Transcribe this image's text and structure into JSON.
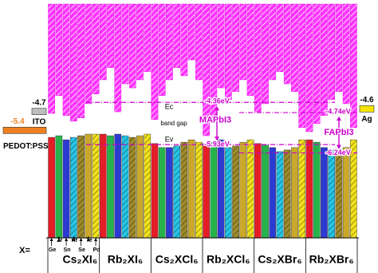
{
  "chart_data": {
    "type": "band-alignment",
    "ylim": [
      -9.4,
      -0.7
    ],
    "cb_color": "#ff33ff",
    "categories": [
      "Cs₂XI₆",
      "Rb₂XI₆",
      "Cs₂XCl₆",
      "Rb₂XCl₆",
      "Cs₂XBr₆",
      "Rb₂XBr₆"
    ],
    "x_label": "X=",
    "series": [
      {
        "name": "Ge",
        "color": "#e41e26",
        "hatch": false,
        "cbm": [
          -4.77,
          -3.52,
          -5.0,
          -5.6,
          -4.71,
          -5.45
        ],
        "vbm": [
          -5.66,
          -5.54,
          -5.89,
          -5.89,
          -5.89,
          -5.75
        ]
      },
      {
        "name": "Zr",
        "color": "#27b34b",
        "hatch": false,
        "cbm": [
          -4.11,
          -3.07,
          -4.11,
          -5.0,
          -4.41,
          -5.15
        ],
        "vbm": [
          -5.6,
          -5.6,
          -6.04,
          -5.84,
          -5.95,
          -5.84
        ]
      },
      {
        "name": "Sn",
        "color": "#2b3bd1",
        "hatch": false,
        "cbm": [
          -4.85,
          -4.71,
          -3.52,
          -3.82,
          -3.52,
          -4.85
        ],
        "vbm": [
          -5.75,
          -5.54,
          -6.04,
          -5.75,
          -6.04,
          -6.04
        ]
      },
      {
        "name": "Hf",
        "color": "#27c6e6",
        "hatch": true,
        "cbm": [
          -5.06,
          -3.67,
          -3.07,
          -4.26,
          -3.22,
          -4.26
        ],
        "vbm": [
          -5.66,
          -5.6,
          -5.98,
          -6.04,
          -6.19,
          -6.13
        ]
      },
      {
        "name": "Se",
        "color": "#9e8b2a",
        "hatch": true,
        "cbm": [
          -4.94,
          -3.82,
          -3.37,
          -3.96,
          -3.67,
          -3.96
        ],
        "vbm": [
          -5.6,
          -5.66,
          -5.84,
          -5.98,
          -6.13,
          -6.19
        ]
      },
      {
        "name": "Te",
        "color": "#c9a82b",
        "hatch": false,
        "cbm": [
          -4.41,
          -3.52,
          -2.78,
          -3.52,
          -3.96,
          -4.41
        ],
        "vbm": [
          -5.54,
          -5.6,
          -5.75,
          -5.84,
          -6.04,
          -6.04
        ]
      },
      {
        "name": "Pd",
        "color": "#f2e21b",
        "hatch": true,
        "cbm": [
          -4.05,
          -3.22,
          -3.52,
          -4.11,
          -5.3,
          -5.3
        ],
        "vbm": [
          -5.54,
          -5.54,
          -5.84,
          -5.75,
          -5.75,
          -5.75
        ]
      }
    ],
    "references": [
      {
        "name": "MAPbI3",
        "color": "#cc00cc",
        "values": [
          -4.36,
          -5.93
        ],
        "value_labels": [
          "-4.36eV",
          "-5.93eV"
        ]
      },
      {
        "name": "FAPbI3",
        "color": "#cc00cc",
        "values": [
          -4.74,
          -6.24
        ],
        "value_labels": [
          "-4.74eV",
          "-6.24eV"
        ]
      }
    ],
    "electrodes": [
      {
        "name": "ITO",
        "value": -4.7,
        "color": "#bdbdbd",
        "label_color": "#000000"
      },
      {
        "name": "PEDOT:PSS",
        "value": -5.4,
        "color": "#f08020",
        "label_color": "#f08020"
      },
      {
        "name": "Ag",
        "value": -4.6,
        "color": "#f5e400",
        "label_color": "#000000"
      }
    ],
    "annotations": [
      "Ec",
      "band gap",
      "Ev"
    ]
  }
}
